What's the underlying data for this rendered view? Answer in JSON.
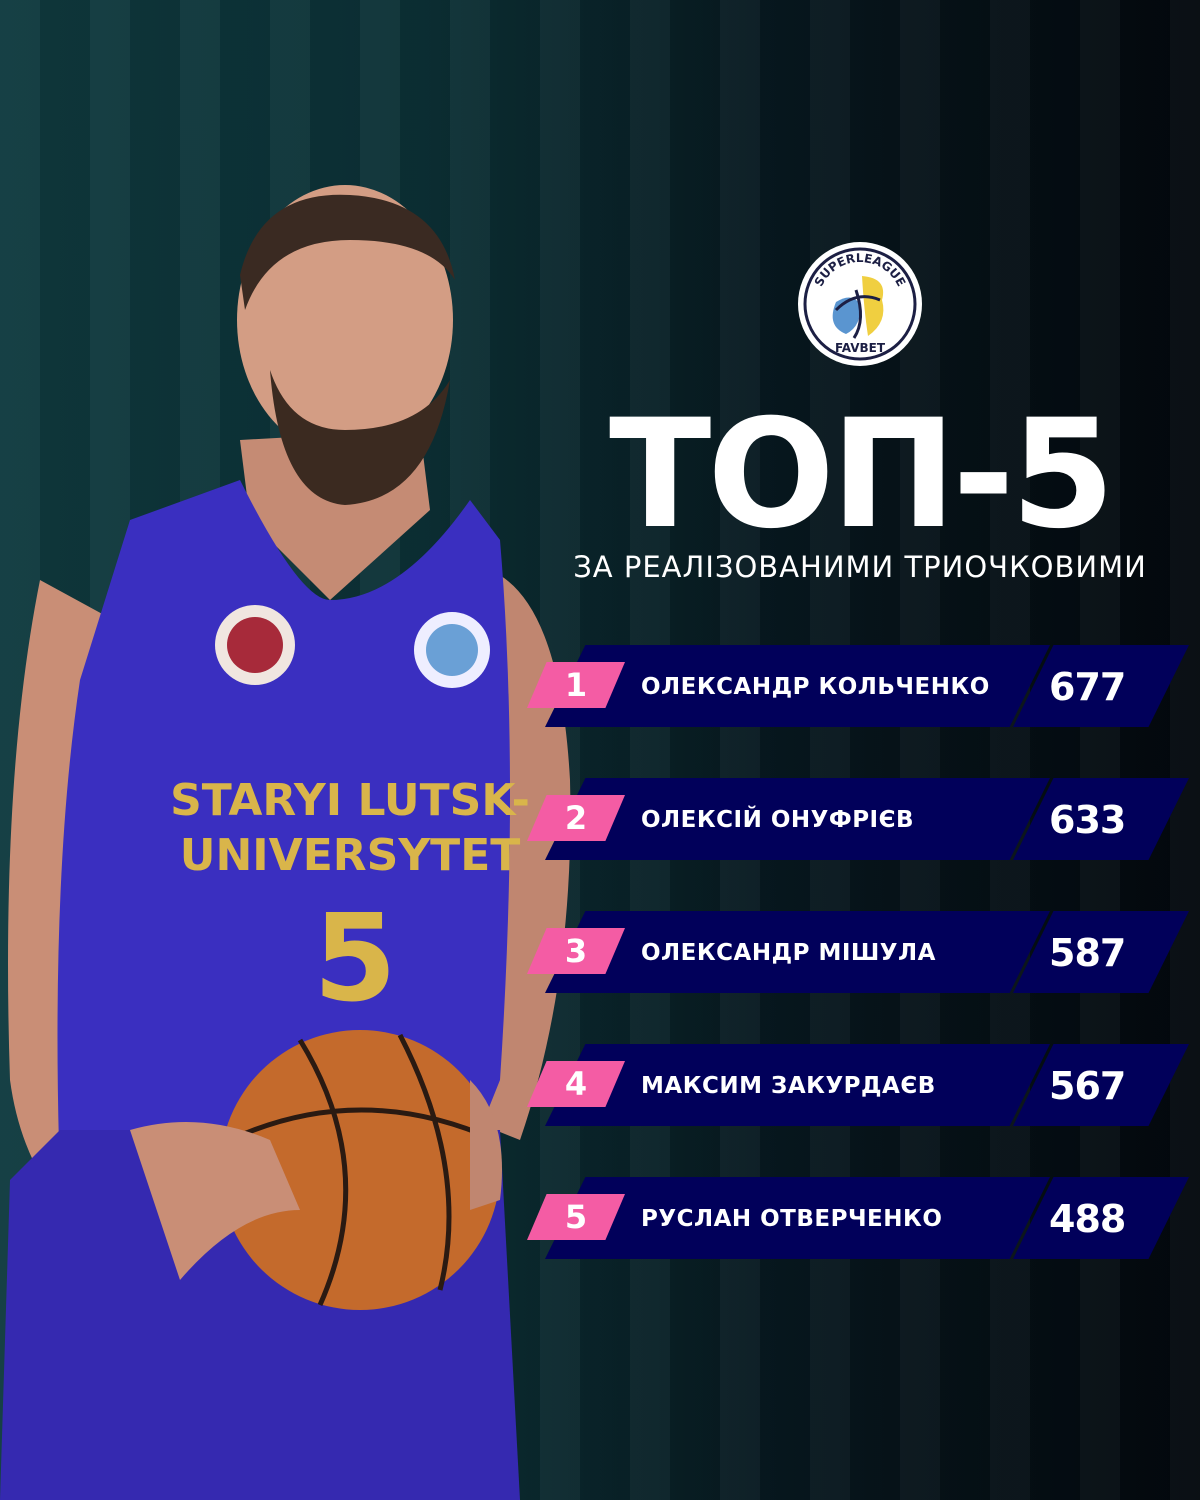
{
  "logo": {
    "top_text": "SUPERLEAGUE",
    "bottom_text": "FAVBET"
  },
  "title": "ТОП-5",
  "subtitle": "ЗА РЕАЛІЗОВАНИМИ ТРИОЧКОВИМИ",
  "jersey": {
    "team_line1": "STARYI LUTSK-",
    "team_line2": "UNIVERSYTET",
    "number": "5"
  },
  "colors": {
    "bar": "#01005a",
    "rank": "#f45ca4",
    "jersey": "#3a2fc0"
  },
  "rows": [
    {
      "rank": "1",
      "name": "ОЛЕКСАНДР КОЛЬЧЕНКО",
      "value": "677"
    },
    {
      "rank": "2",
      "name": "ОЛЕКСІЙ ОНУФРІЄВ",
      "value": "633"
    },
    {
      "rank": "3",
      "name": "ОЛЕКСАНДР МІШУЛА",
      "value": "587"
    },
    {
      "rank": "4",
      "name": "МАКСИМ ЗАКУРДАЄВ",
      "value": "567"
    },
    {
      "rank": "5",
      "name": "РУСЛАН ОТВЕРЧЕНКО",
      "value": "488"
    }
  ]
}
